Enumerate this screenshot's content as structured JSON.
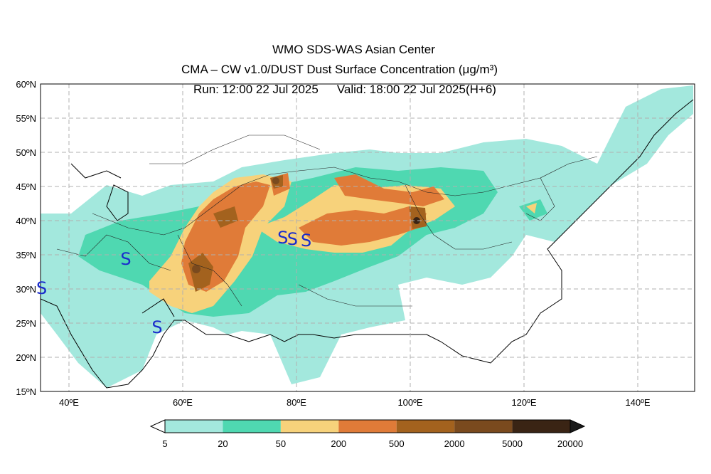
{
  "title": {
    "line1": "WMO SDS-WAS Asian Center",
    "line2": "CMA – CW v1.0/DUST Dust Surface Concentration (μg/m³)",
    "run": "Run: 12:00 22 Jul 2025",
    "valid": "Valid: 18:00 22 Jul 2025(H+6)"
  },
  "map": {
    "lon_range": [
      35,
      150
    ],
    "lat_range": [
      15,
      60
    ],
    "grid": true,
    "lat_labels": [
      "60ºN",
      "55ºN",
      "50ºN",
      "45ºN",
      "40ºN",
      "35ºN",
      "30ºN",
      "25ºN",
      "20ºN",
      "15ºN"
    ],
    "lon_labels": [
      "40ºE",
      "60ºE",
      "80ºE",
      "100ºE",
      "120ºE",
      "140ºE"
    ],
    "storm_symbol": "S",
    "storm_markers": [
      {
        "lon": 50,
        "lat": 34.5
      },
      {
        "lon": 55.5,
        "lat": 24.5
      },
      {
        "lon": 35.2,
        "lat": 30.2
      },
      {
        "lon": 77.6,
        "lat": 37.6
      },
      {
        "lon": 79.3,
        "lat": 37.4
      },
      {
        "lon": 81.7,
        "lat": 37.2
      }
    ]
  },
  "colorbar": {
    "levels": [
      "5",
      "20",
      "50",
      "200",
      "500",
      "2000",
      "5000",
      "20000"
    ],
    "colors": [
      "#a3e8dd",
      "#4fd8b1",
      "#f7d27b",
      "#e07b38",
      "#a3621e",
      "#7a4a1e",
      "#3a2414"
    ],
    "under_color": "#ffffff",
    "over_color": "#1a1a1a"
  }
}
